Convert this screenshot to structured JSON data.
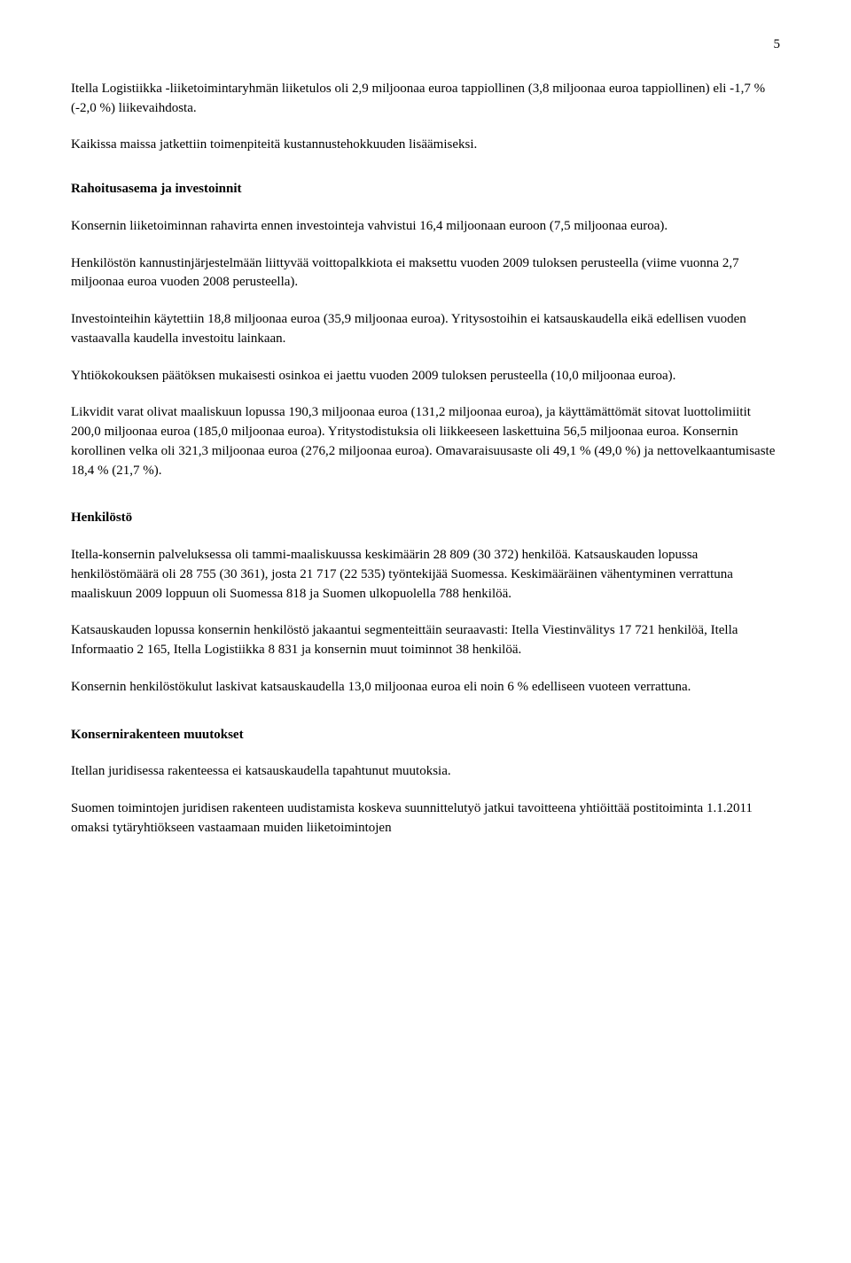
{
  "page_number": "5",
  "p1": "Itella Logistiikka -liiketoimintaryhmän liiketulos oli 2,9 miljoonaa euroa tappiollinen (3,8 miljoonaa euroa tappiollinen) eli -1,7 % (-2,0 %) liikevaihdosta.",
  "p2": "Kaikissa maissa jatkettiin toimenpiteitä kustannustehokkuuden lisäämiseksi.",
  "h1": "Rahoitusasema ja investoinnit",
  "p3": "Konsernin liiketoiminnan rahavirta ennen investointeja vahvistui 16,4 miljoonaan euroon (7,5 miljoonaa euroa).",
  "p4": "Henkilöstön kannustinjärjestelmään liittyvää voittopalkkiota ei maksettu vuoden 2009 tuloksen perusteella (viime vuonna 2,7 miljoonaa euroa vuoden 2008 perusteella).",
  "p5": "Investointeihin käytettiin 18,8 miljoonaa euroa (35,9 miljoonaa euroa). Yritysostoihin ei katsauskaudella eikä edellisen vuoden vastaavalla kaudella investoitu lainkaan.",
  "p6": "Yhtiökokouksen päätöksen mukaisesti osinkoa ei jaettu vuoden 2009 tuloksen perusteella (10,0 miljoonaa euroa).",
  "p7": "Likvidit varat olivat maaliskuun lopussa 190,3 miljoonaa euroa (131,2 miljoonaa euroa), ja käyttämättömät sitovat luottolimiitit 200,0 miljoonaa euroa (185,0 miljoonaa euroa). Yritystodistuksia oli liikkeeseen laskettuina 56,5 miljoonaa euroa. Konsernin korollinen velka oli 321,3 miljoonaa euroa (276,2 miljoonaa euroa). Omavaraisuusaste oli 49,1 % (49,0 %) ja nettovelkaantumisaste 18,4 % (21,7 %).",
  "h2": "Henkilöstö",
  "p8": "Itella-konsernin palveluksessa oli tammi-maaliskuussa keskimäärin 28 809 (30 372) henkilöä. Katsauskauden lopussa henkilöstömäärä oli 28 755 (30 361), josta 21 717 (22 535) työntekijää Suomessa. Keskimääräinen vähentyminen verrattuna maaliskuun 2009 loppuun oli Suomessa 818 ja Suomen ulkopuolella 788 henkilöä.",
  "p9": "Katsauskauden lopussa konsernin henkilöstö jakaantui segmenteittäin seuraavasti: Itella Viestinvälitys 17 721 henkilöä, Itella Informaatio 2 165, Itella Logistiikka 8 831 ja konsernin muut toiminnot 38 henkilöä.",
  "p10": "Konsernin henkilöstökulut laskivat katsauskaudella 13,0 miljoonaa euroa eli noin 6 % edelliseen vuoteen verrattuna.",
  "h3": "Konsernirakenteen muutokset",
  "p11": "Itellan juridisessa rakenteessa ei katsauskaudella tapahtunut muutoksia.",
  "p12": "Suomen toimintojen juridisen rakenteen uudistamista koskeva suunnittelutyö jatkui tavoitteena yhtiöittää postitoiminta 1.1.2011 omaksi tytäryhtiökseen vastaamaan muiden liiketoimintojen"
}
